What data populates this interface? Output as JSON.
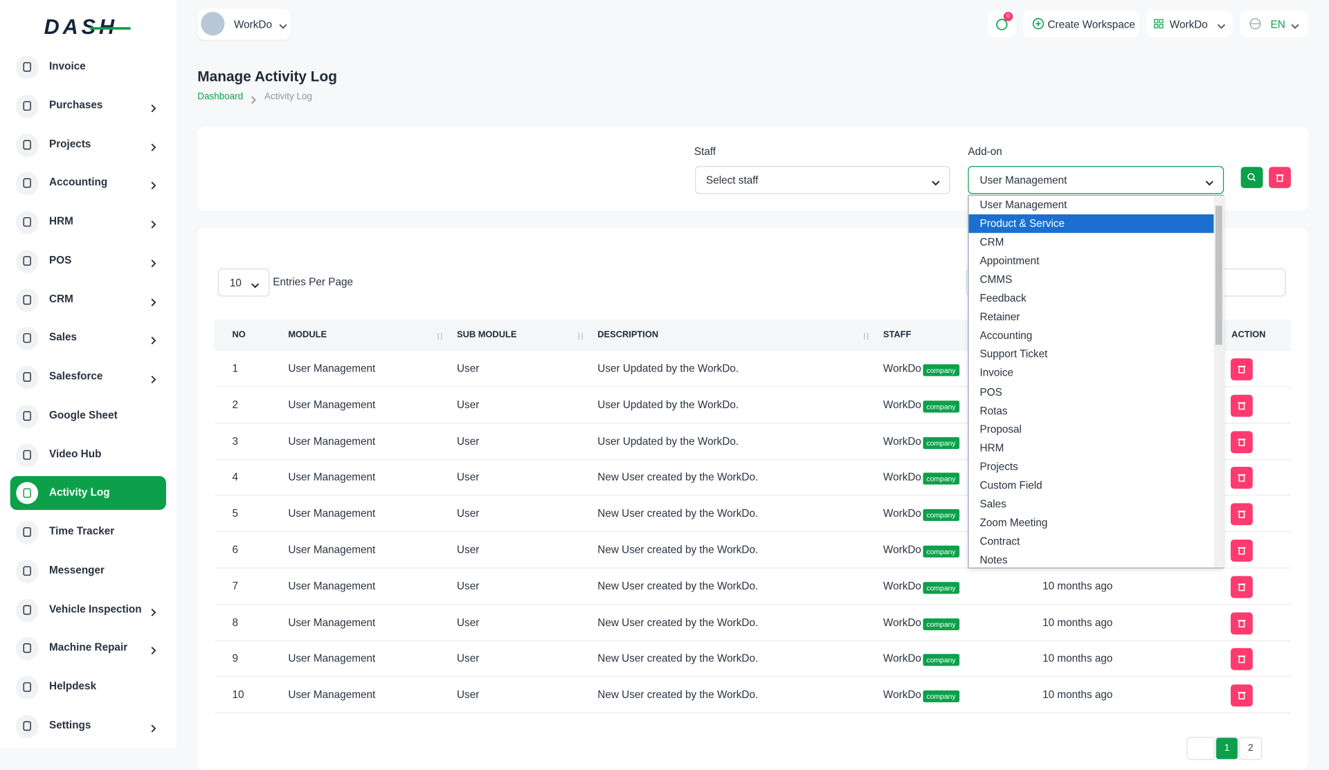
{
  "logo": "DASH",
  "topbar": {
    "workspace": "WorkDo",
    "notifications": "0",
    "create_workspace": "Create Workspace",
    "user": "WorkDo",
    "language": "EN"
  },
  "sidebar": [
    {
      "label": "Invoice",
      "submenu": false,
      "active": false
    },
    {
      "label": "Purchases",
      "submenu": true,
      "active": false
    },
    {
      "label": "Projects",
      "submenu": true,
      "active": false
    },
    {
      "label": "Accounting",
      "submenu": true,
      "active": false
    },
    {
      "label": "HRM",
      "submenu": true,
      "active": false
    },
    {
      "label": "POS",
      "submenu": true,
      "active": false
    },
    {
      "label": "CRM",
      "submenu": true,
      "active": false
    },
    {
      "label": "Sales",
      "submenu": true,
      "active": false
    },
    {
      "label": "Salesforce",
      "submenu": true,
      "active": false
    },
    {
      "label": "Google Sheet",
      "submenu": false,
      "active": false
    },
    {
      "label": "Video Hub",
      "submenu": false,
      "active": false
    },
    {
      "label": "Activity Log",
      "submenu": false,
      "active": true
    },
    {
      "label": "Time Tracker",
      "submenu": false,
      "active": false
    },
    {
      "label": "Messenger",
      "submenu": false,
      "active": false
    },
    {
      "label": "Vehicle Inspection",
      "submenu": true,
      "active": false
    },
    {
      "label": "Machine Repair",
      "submenu": true,
      "active": false
    },
    {
      "label": "Helpdesk",
      "submenu": false,
      "active": false
    },
    {
      "label": "Settings",
      "submenu": true,
      "active": false
    }
  ],
  "page": {
    "title": "Manage Activity Log",
    "breadcrumb": [
      "Dashboard",
      "Activity Log"
    ]
  },
  "filters": {
    "staff_label": "Staff",
    "staff_placeholder": "Select staff",
    "addon_label": "Add-on",
    "addon_selected": "User Management",
    "addon_options": [
      "User Management",
      "Product & Service",
      "CRM",
      "Appointment",
      "CMMS",
      "Feedback",
      "Retainer",
      "Accounting",
      "Support Ticket",
      "Invoice",
      "POS",
      "Rotas",
      "Proposal",
      "HRM",
      "Projects",
      "Custom Field",
      "Sales",
      "Zoom Meeting",
      "Contract",
      "Notes"
    ],
    "addon_highlighted_index": 1
  },
  "table": {
    "entries": "10",
    "entries_label": "Entries Per Page",
    "columns": [
      "NO",
      "MODULE",
      "SUB MODULE",
      "DESCRIPTION",
      "STAFF",
      "ACTION"
    ],
    "rows": [
      {
        "no": 1,
        "module": "User Management",
        "sub_module": "User",
        "description": "User Updated by the WorkDo.",
        "staff": "WorkDo",
        "role": "company",
        "time": null
      },
      {
        "no": 2,
        "module": "User Management",
        "sub_module": "User",
        "description": "User Updated by the WorkDo.",
        "staff": "WorkDo",
        "role": "company",
        "time": null
      },
      {
        "no": 3,
        "module": "User Management",
        "sub_module": "User",
        "description": "User Updated by the WorkDo.",
        "staff": "WorkDo",
        "role": "company",
        "time": null
      },
      {
        "no": 4,
        "module": "User Management",
        "sub_module": "User",
        "description": "New User created by the WorkDo.",
        "staff": "WorkDo",
        "role": "company",
        "time": null
      },
      {
        "no": 5,
        "module": "User Management",
        "sub_module": "User",
        "description": "New User created by the WorkDo.",
        "staff": "WorkDo",
        "role": "company",
        "time": null
      },
      {
        "no": 6,
        "module": "User Management",
        "sub_module": "User",
        "description": "New User created by the WorkDo.",
        "staff": "WorkDo",
        "role": "company",
        "time": null
      },
      {
        "no": 7,
        "module": "User Management",
        "sub_module": "User",
        "description": "New User created by the WorkDo.",
        "staff": "WorkDo",
        "role": "company",
        "time": "10 months ago"
      },
      {
        "no": 8,
        "module": "User Management",
        "sub_module": "User",
        "description": "New User created by the WorkDo.",
        "staff": "WorkDo",
        "role": "company",
        "time": "10 months ago"
      },
      {
        "no": 9,
        "module": "User Management",
        "sub_module": "User",
        "description": "New User created by the WorkDo.",
        "staff": "WorkDo",
        "role": "company",
        "time": "10 months ago"
      },
      {
        "no": 10,
        "module": "User Management",
        "sub_module": "User",
        "description": "New User created by the WorkDo.",
        "staff": "WorkDo",
        "role": "company",
        "time": "10 months ago"
      }
    ]
  },
  "pagination": [
    "1",
    "2"
  ]
}
